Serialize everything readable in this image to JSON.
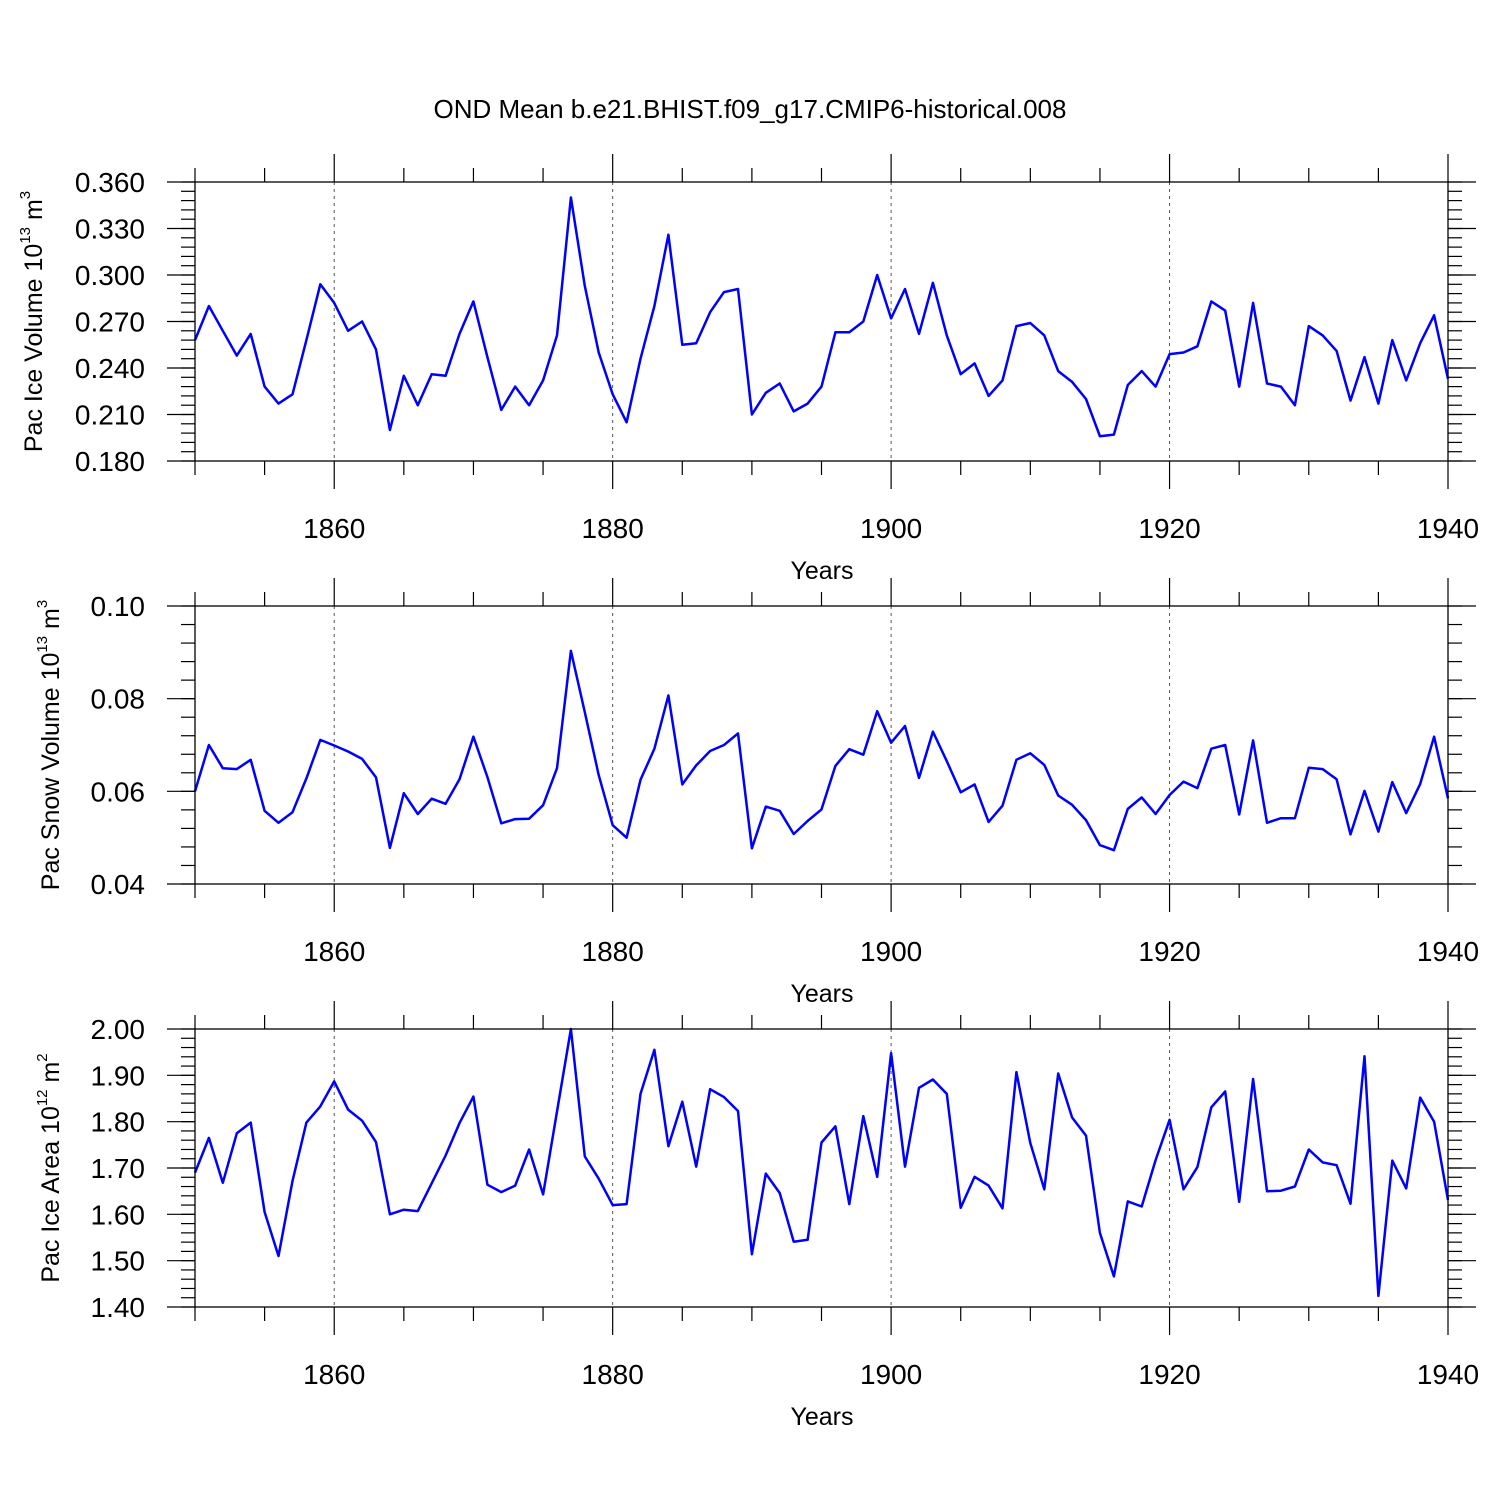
{
  "page_title": "OND Mean b.e21.BHIST.f09_g17.CMIP6-historical.008",
  "colors": {
    "series": "#0000ff",
    "axis": "#000000",
    "grid": "#555555"
  },
  "chart_data": [
    {
      "type": "line",
      "name": "pac-ice-volume",
      "ylabel_main": "Pac Ice Volume 10",
      "ylabel_exp": "13",
      "ylabel_unit": "m",
      "ylabel_unit_exp": "3",
      "xlabel": "Years",
      "xlim": [
        1850,
        1940
      ],
      "ylim": [
        0.18,
        0.36
      ],
      "xticks": [
        1860,
        1880,
        1900,
        1920,
        1940
      ],
      "xtick_labels": [
        "1860",
        "1880",
        "1900",
        "1920",
        "1940"
      ],
      "yticks": [
        0.18,
        0.21,
        0.24,
        0.27,
        0.3,
        0.33,
        0.36
      ],
      "ytick_labels": [
        "0.180",
        "0.210",
        "0.240",
        "0.270",
        "0.300",
        "0.330",
        "0.360"
      ],
      "yminor_step": 0.006,
      "grid_x": [
        1860,
        1880,
        1900,
        1920
      ],
      "x_start": 1850,
      "values": [
        0.258,
        0.28,
        0.264,
        0.248,
        0.262,
        0.228,
        0.217,
        0.223,
        0.258,
        0.294,
        0.282,
        0.264,
        0.27,
        0.252,
        0.2,
        0.235,
        0.216,
        0.236,
        0.235,
        0.262,
        0.283,
        0.247,
        0.213,
        0.228,
        0.216,
        0.232,
        0.261,
        0.35,
        0.293,
        0.25,
        0.223,
        0.205,
        0.246,
        0.28,
        0.326,
        0.255,
        0.256,
        0.276,
        0.289,
        0.291,
        0.21,
        0.224,
        0.23,
        0.212,
        0.217,
        0.228,
        0.263,
        0.263,
        0.27,
        0.3,
        0.272,
        0.291,
        0.262,
        0.295,
        0.261,
        0.236,
        0.243,
        0.222,
        0.232,
        0.267,
        0.269,
        0.261,
        0.238,
        0.231,
        0.22,
        0.196,
        0.197,
        0.229,
        0.238,
        0.228,
        0.249,
        0.25,
        0.254,
        0.283,
        0.277,
        0.228,
        0.282,
        0.23,
        0.228,
        0.216,
        0.267,
        0.261,
        0.251,
        0.219,
        0.247,
        0.217,
        0.258,
        0.232,
        0.256,
        0.274,
        0.233
      ]
    },
    {
      "type": "line",
      "name": "pac-snow-volume",
      "ylabel_main": "Pac Snow Volume 10",
      "ylabel_exp": "13",
      "ylabel_unit": "m",
      "ylabel_unit_exp": "3",
      "xlabel": "Years",
      "xlim": [
        1850,
        1940
      ],
      "ylim": [
        0.04,
        0.1
      ],
      "xticks": [
        1860,
        1880,
        1900,
        1920,
        1940
      ],
      "xtick_labels": [
        "1860",
        "1880",
        "1900",
        "1920",
        "1940"
      ],
      "yticks": [
        0.04,
        0.06,
        0.08,
        0.1
      ],
      "ytick_labels": [
        "0.04",
        "0.06",
        "0.08",
        "0.10"
      ],
      "yminor_step": 0.004,
      "grid_x": [
        1860,
        1880,
        1900,
        1920
      ],
      "x_start": 1850,
      "values": [
        0.06,
        0.07,
        0.065,
        0.0648,
        0.0668,
        0.0558,
        0.0532,
        0.0555,
        0.0628,
        0.0711,
        0.0699,
        0.0686,
        0.067,
        0.063,
        0.0478,
        0.0596,
        0.0551,
        0.0584,
        0.0573,
        0.0626,
        0.0718,
        0.0631,
        0.0531,
        0.054,
        0.0541,
        0.057,
        0.065,
        0.0903,
        0.0771,
        0.0635,
        0.0527,
        0.05,
        0.0625,
        0.0692,
        0.0807,
        0.0615,
        0.0656,
        0.0687,
        0.07,
        0.0725,
        0.0477,
        0.0567,
        0.0558,
        0.0508,
        0.0536,
        0.0561,
        0.0655,
        0.0691,
        0.0679,
        0.0773,
        0.0705,
        0.0741,
        0.0629,
        0.0729,
        0.0665,
        0.0598,
        0.0615,
        0.0534,
        0.0569,
        0.0668,
        0.0682,
        0.0657,
        0.0591,
        0.0571,
        0.0538,
        0.0484,
        0.0473,
        0.0562,
        0.0587,
        0.0551,
        0.0592,
        0.0621,
        0.0607,
        0.0692,
        0.07,
        0.055,
        0.071,
        0.0532,
        0.0542,
        0.0542,
        0.0651,
        0.0648,
        0.0626,
        0.0507,
        0.0601,
        0.0513,
        0.062,
        0.0553,
        0.0616,
        0.0718,
        0.0585
      ]
    },
    {
      "type": "line",
      "name": "pac-ice-area",
      "ylabel_main": "Pac Ice Area 10",
      "ylabel_exp": "12",
      "ylabel_unit": "m",
      "ylabel_unit_exp": "2",
      "xlabel": "Years",
      "xlim": [
        1850,
        1940
      ],
      "ylim": [
        1.4,
        2.0
      ],
      "xticks": [
        1860,
        1880,
        1900,
        1920,
        1940
      ],
      "xtick_labels": [
        "1860",
        "1880",
        "1900",
        "1920",
        "1940"
      ],
      "yticks": [
        1.4,
        1.5,
        1.6,
        1.7,
        1.8,
        1.9,
        2.0
      ],
      "ytick_labels": [
        "1.40",
        "1.50",
        "1.60",
        "1.70",
        "1.80",
        "1.90",
        "2.00"
      ],
      "yminor_step": 0.02,
      "grid_x": [
        1860,
        1880,
        1900,
        1920
      ],
      "x_start": 1850,
      "values": [
        1.69,
        1.765,
        1.668,
        1.775,
        1.798,
        1.605,
        1.51,
        1.672,
        1.798,
        1.833,
        1.887,
        1.826,
        1.802,
        1.756,
        1.6,
        1.61,
        1.607,
        1.667,
        1.727,
        1.797,
        1.854,
        1.664,
        1.648,
        1.662,
        1.74,
        1.643,
        1.822,
        2.0,
        1.725,
        1.677,
        1.62,
        1.622,
        1.86,
        1.955,
        1.747,
        1.843,
        1.703,
        1.87,
        1.853,
        1.823,
        1.514,
        1.688,
        1.646,
        1.541,
        1.545,
        1.755,
        1.79,
        1.622,
        1.812,
        1.681,
        1.948,
        1.703,
        1.873,
        1.891,
        1.86,
        1.614,
        1.681,
        1.662,
        1.613,
        1.907,
        1.754,
        1.654,
        1.904,
        1.809,
        1.77,
        1.56,
        1.466,
        1.628,
        1.617,
        1.717,
        1.804,
        1.654,
        1.702,
        1.831,
        1.865,
        1.627,
        1.892,
        1.65,
        1.651,
        1.66,
        1.74,
        1.712,
        1.706,
        1.623,
        1.941,
        1.424,
        1.716,
        1.656,
        1.852,
        1.8,
        1.631
      ]
    }
  ]
}
